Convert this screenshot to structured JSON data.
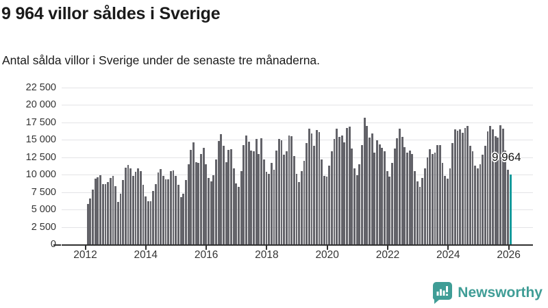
{
  "header": {
    "title": "9 964 villor såldes i Sverige",
    "subtitle": "Antal sålda villor i Sverige under de senaste tre månaderna."
  },
  "chart_data": {
    "type": "bar",
    "title": "9 964 villor såldes i Sverige",
    "subtitle": "Antal sålda villor i Sverige under de senaste tre månaderna.",
    "x_unit": "month",
    "x_start": "2012",
    "x_end": "2026",
    "x_tick_labels": [
      "2012",
      "2014",
      "2016",
      "2018",
      "2020",
      "2022",
      "2024",
      "2026"
    ],
    "y_tick_labels": [
      "0",
      "2 500",
      "5 000",
      "7 500",
      "10 000",
      "12 500",
      "15 000",
      "17 500",
      "20 000",
      "22 500"
    ],
    "y_tick_step": 2500,
    "ylim": [
      0,
      22500
    ],
    "grid": true,
    "bar_color": "#636369",
    "highlight_color": "#149a9b",
    "highlight_last_bar": true,
    "annotation": {
      "label": "9 964",
      "value": 9964
    },
    "values": [
      5750,
      6550,
      7800,
      9400,
      9600,
      9900,
      8650,
      8600,
      8900,
      9550,
      9850,
      8300,
      6100,
      7300,
      9200,
      11000,
      11400,
      10900,
      9800,
      10400,
      10900,
      10500,
      8500,
      6900,
      6150,
      6150,
      7600,
      8650,
      10300,
      10800,
      9800,
      9300,
      9300,
      10500,
      10600,
      9850,
      8550,
      6800,
      7250,
      9200,
      11450,
      13550,
      14600,
      11800,
      11650,
      12950,
      13850,
      11500,
      9550,
      9050,
      9950,
      12150,
      14800,
      15800,
      14100,
      11800,
      13500,
      13650,
      10850,
      8750,
      8250,
      10500,
      14250,
      15550,
      14750,
      13450,
      13300,
      15050,
      12950,
      15150,
      12150,
      10350,
      10050,
      11650,
      10700,
      13450,
      15050,
      14900,
      12800,
      13300,
      15550,
      15450,
      12650,
      10050,
      8900,
      10500,
      12000,
      14500,
      16550,
      15900,
      14100,
      16350,
      16100,
      12150,
      9800,
      9700,
      11250,
      13300,
      15050,
      16550,
      15350,
      15550,
      14600,
      16700,
      16850,
      13750,
      10850,
      9950,
      11500,
      14250,
      18150,
      16950,
      15250,
      15900,
      13100,
      14950,
      14300,
      13800,
      13300,
      10500,
      9700,
      11650,
      13750,
      15150,
      16550,
      15400,
      13950,
      13100,
      13450,
      12950,
      10500,
      9050,
      8250,
      9550,
      10850,
      12450,
      13600,
      12950,
      13100,
      14250,
      14200,
      11650,
      9800,
      9400,
      10850,
      14500,
      16450,
      16300,
      16500,
      15950,
      16700,
      16950,
      14150,
      13300,
      11250,
      10850,
      11500,
      12800,
      14100,
      16200,
      16950,
      16450,
      15450,
      15250,
      17100,
      16550,
      13450,
      10700,
      9964
    ]
  },
  "brand": {
    "name": "Newsworthy",
    "color": "#3f9d96"
  }
}
